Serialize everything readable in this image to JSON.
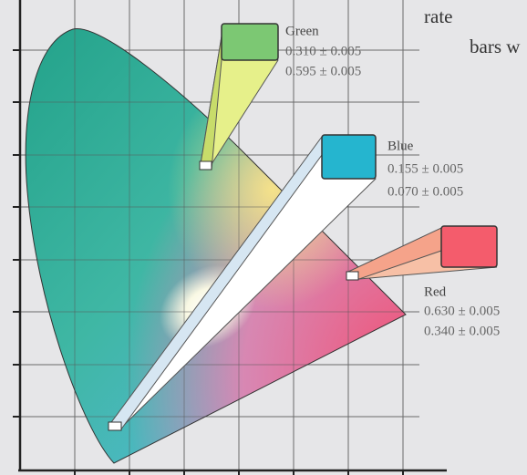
{
  "header": {
    "lines": [
      "rate",
      "bars w"
    ]
  },
  "callouts": [
    {
      "label": "Green",
      "x": "0.310 ± 0.005",
      "y": "0.595 ± 0.005"
    },
    {
      "label": "Blue",
      "x": "0.155 ± 0.005",
      "y": "0.070 ± 0.005"
    },
    {
      "label": "Red",
      "x": "0.630 ± 0.005",
      "y": "0.340 ± 0.005"
    }
  ]
}
